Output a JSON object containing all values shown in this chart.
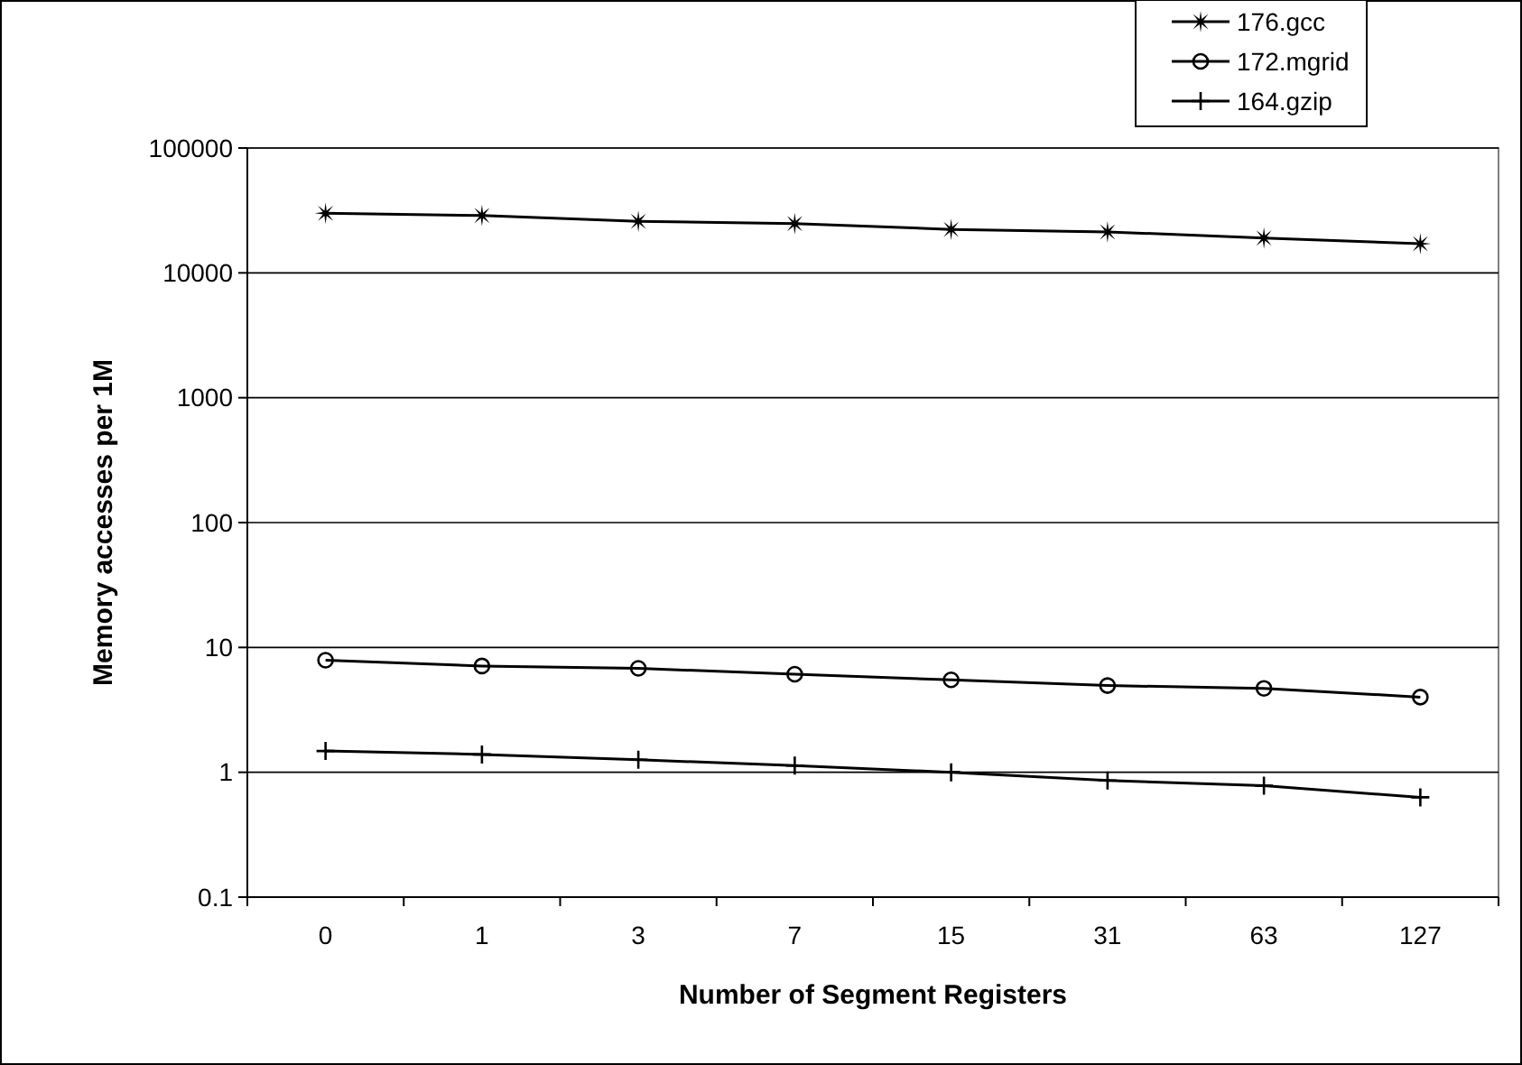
{
  "chart_data": {
    "type": "line",
    "xlabel": "Number of Segment Registers",
    "ylabel": "Memory accesses per 1M",
    "categories": [
      "0",
      "1",
      "3",
      "7",
      "15",
      "31",
      "63",
      "127"
    ],
    "series": [
      {
        "name": "176.gcc",
        "color": "#000000",
        "marker": "star",
        "values": [
          30000,
          28800,
          25900,
          24800,
          22300,
          21300,
          19000,
          17100
        ]
      },
      {
        "name": "172.mgrid",
        "color": "#000000",
        "marker": "circle",
        "values": [
          7.9,
          7.1,
          6.8,
          6.1,
          5.5,
          4.95,
          4.7,
          4.0
        ]
      },
      {
        "name": "164.gzip",
        "color": "#000000",
        "marker": "cross",
        "values": [
          1.48,
          1.39,
          1.26,
          1.13,
          1.0,
          0.86,
          0.78,
          0.63
        ]
      }
    ],
    "log": true,
    "ylim": [
      0.1,
      100000
    ],
    "yticks": [
      0.1,
      1,
      10,
      100,
      1000,
      10000,
      100000
    ],
    "grid": "y",
    "legend": "top right",
    "line_style": "solid"
  }
}
